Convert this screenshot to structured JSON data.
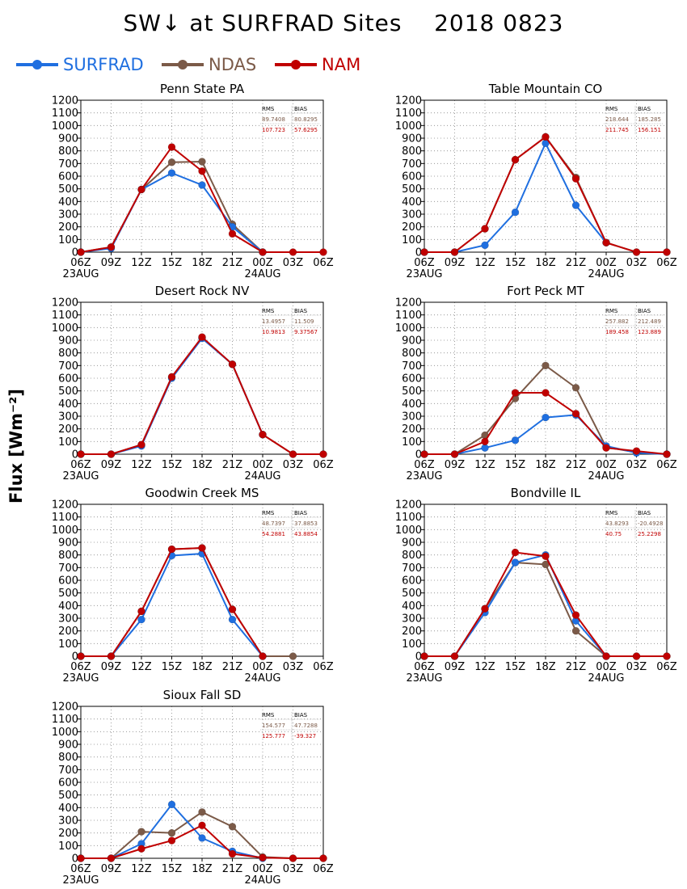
{
  "title": "SW↓ at SURFRAD Sites    2018 0823",
  "y_axis_label": "Flux [Wm⁻²]",
  "legend": [
    {
      "name": "SURFRAD",
      "color": "#1f6fe0"
    },
    {
      "name": "NDAS",
      "color": "#7b5a48"
    },
    {
      "name": "NAM",
      "color": "#c00000"
    }
  ],
  "stats_headers": [
    "RMS",
    "BIAS"
  ],
  "chart_data": [
    {
      "type": "line",
      "title": "Penn State PA",
      "categories": [
        "06Z",
        "09Z",
        "12Z",
        "15Z",
        "18Z",
        "21Z",
        "00Z",
        "03Z",
        "06Z"
      ],
      "date_labels": [
        "23AUG",
        "24AUG"
      ],
      "ylim": [
        0,
        1200
      ],
      "yticks": [
        0,
        100,
        200,
        300,
        400,
        500,
        600,
        700,
        800,
        900,
        1000,
        1100,
        1200
      ],
      "grid": true,
      "stats": {
        "ndas": [
          "89.7408",
          "80.8295"
        ],
        "nam": [
          "107.723",
          "57.6295"
        ]
      },
      "series": [
        {
          "name": "SURFRAD",
          "values": [
            0,
            30,
            495,
            625,
            530,
            200,
            0,
            null,
            null
          ]
        },
        {
          "name": "NDAS",
          "values": [
            0,
            40,
            495,
            710,
            715,
            220,
            0,
            null,
            null
          ]
        },
        {
          "name": "NAM",
          "values": [
            0,
            40,
            495,
            830,
            640,
            145,
            0,
            0,
            0
          ]
        }
      ]
    },
    {
      "type": "line",
      "title": "Table Mountain CO",
      "categories": [
        "06Z",
        "09Z",
        "12Z",
        "15Z",
        "18Z",
        "21Z",
        "00Z",
        "03Z",
        "06Z"
      ],
      "date_labels": [
        "23AUG",
        "24AUG"
      ],
      "ylim": [
        0,
        1200
      ],
      "yticks": [
        0,
        100,
        200,
        300,
        400,
        500,
        600,
        700,
        800,
        900,
        1000,
        1100,
        1200
      ],
      "grid": true,
      "stats": {
        "ndas": [
          "218.644",
          "185.285"
        ],
        "nam": [
          "211.745",
          "156.151"
        ]
      },
      "series": [
        {
          "name": "SURFRAD",
          "values": [
            0,
            0,
            55,
            315,
            860,
            370,
            75,
            null,
            null
          ]
        },
        {
          "name": "NDAS",
          "values": [
            0,
            0,
            185,
            730,
            910,
            590,
            75,
            0,
            0
          ]
        },
        {
          "name": "NAM",
          "values": [
            0,
            0,
            185,
            730,
            910,
            580,
            75,
            0,
            0
          ]
        }
      ]
    },
    {
      "type": "line",
      "title": "Desert Rock NV",
      "categories": [
        "06Z",
        "09Z",
        "12Z",
        "15Z",
        "18Z",
        "21Z",
        "00Z",
        "03Z",
        "06Z"
      ],
      "date_labels": [
        "23AUG",
        "24AUG"
      ],
      "ylim": [
        0,
        1200
      ],
      "yticks": [
        0,
        100,
        200,
        300,
        400,
        500,
        600,
        700,
        800,
        900,
        1000,
        1100,
        1200
      ],
      "grid": true,
      "stats": {
        "ndas": [
          "13.4957",
          "11.509"
        ],
        "nam": [
          "10.9813",
          "9.37567"
        ]
      },
      "series": [
        {
          "name": "SURFRAD",
          "values": [
            0,
            0,
            65,
            600,
            915,
            710,
            155,
            null,
            null
          ]
        },
        {
          "name": "NDAS",
          "values": [
            0,
            0,
            75,
            610,
            920,
            710,
            155,
            0,
            0
          ]
        },
        {
          "name": "NAM",
          "values": [
            0,
            0,
            75,
            610,
            925,
            710,
            155,
            0,
            0
          ]
        }
      ]
    },
    {
      "type": "line",
      "title": "Fort Peck MT",
      "categories": [
        "06Z",
        "09Z",
        "12Z",
        "15Z",
        "18Z",
        "21Z",
        "00Z",
        "03Z",
        "06Z"
      ],
      "date_labels": [
        "23AUG",
        "24AUG"
      ],
      "ylim": [
        0,
        1200
      ],
      "yticks": [
        0,
        100,
        200,
        300,
        400,
        500,
        600,
        700,
        800,
        900,
        1000,
        1100,
        1200
      ],
      "grid": true,
      "stats": {
        "ndas": [
          "257.882",
          "212.489"
        ],
        "nam": [
          "189.458",
          "123.889"
        ]
      },
      "series": [
        {
          "name": "SURFRAD",
          "values": [
            0,
            0,
            50,
            110,
            290,
            310,
            65,
            10,
            0
          ]
        },
        {
          "name": "NDAS",
          "values": [
            0,
            0,
            150,
            440,
            700,
            525,
            55,
            15,
            0
          ]
        },
        {
          "name": "NAM",
          "values": [
            0,
            0,
            100,
            485,
            485,
            320,
            50,
            25,
            0
          ]
        }
      ]
    },
    {
      "type": "line",
      "title": "Goodwin Creek MS",
      "categories": [
        "06Z",
        "09Z",
        "12Z",
        "15Z",
        "18Z",
        "21Z",
        "00Z",
        "03Z",
        "06Z"
      ],
      "date_labels": [
        "23AUG",
        "24AUG"
      ],
      "ylim": [
        0,
        1200
      ],
      "yticks": [
        0,
        100,
        200,
        300,
        400,
        500,
        600,
        700,
        800,
        900,
        1000,
        1100,
        1200
      ],
      "grid": true,
      "stats": {
        "ndas": [
          "48.7397",
          "37.8853"
        ],
        "nam": [
          "54.2881",
          "43.8854"
        ]
      },
      "series": [
        {
          "name": "SURFRAD",
          "values": [
            0,
            0,
            290,
            795,
            810,
            290,
            0,
            null,
            null
          ]
        },
        {
          "name": "NDAS",
          "values": [
            0,
            0,
            355,
            845,
            855,
            370,
            0,
            0,
            null
          ]
        },
        {
          "name": "NAM",
          "values": [
            0,
            0,
            355,
            845,
            855,
            370,
            0,
            null,
            null
          ]
        }
      ]
    },
    {
      "type": "line",
      "title": "Bondville IL",
      "categories": [
        "06Z",
        "09Z",
        "12Z",
        "15Z",
        "18Z",
        "21Z",
        "00Z",
        "03Z",
        "06Z"
      ],
      "date_labels": [
        "23AUG",
        "24AUG"
      ],
      "ylim": [
        0,
        1200
      ],
      "yticks": [
        0,
        100,
        200,
        300,
        400,
        500,
        600,
        700,
        800,
        900,
        1000,
        1100,
        1200
      ],
      "grid": true,
      "stats": {
        "ndas": [
          "43.8293",
          "-20.4928"
        ],
        "nam": [
          "40.75",
          "25.2298"
        ]
      },
      "series": [
        {
          "name": "SURFRAD",
          "values": [
            0,
            0,
            345,
            740,
            800,
            280,
            0,
            null,
            null
          ]
        },
        {
          "name": "NDAS",
          "values": [
            0,
            0,
            375,
            740,
            725,
            200,
            0,
            0,
            0
          ]
        },
        {
          "name": "NAM",
          "values": [
            0,
            0,
            375,
            820,
            790,
            325,
            0,
            0,
            0
          ]
        }
      ]
    },
    {
      "type": "line",
      "title": "Sioux Fall SD",
      "categories": [
        "06Z",
        "09Z",
        "12Z",
        "15Z",
        "18Z",
        "21Z",
        "00Z",
        "03Z",
        "06Z"
      ],
      "date_labels": [
        "23AUG",
        "24AUG"
      ],
      "ylim": [
        0,
        1200
      ],
      "yticks": [
        0,
        100,
        200,
        300,
        400,
        500,
        600,
        700,
        800,
        900,
        1000,
        1100,
        1200
      ],
      "grid": true,
      "stats": {
        "ndas": [
          "154.577",
          "47.7288"
        ],
        "nam": [
          "125.777",
          "-39.327"
        ]
      },
      "series": [
        {
          "name": "SURFRAD",
          "values": [
            0,
            0,
            115,
            425,
            160,
            55,
            0,
            null,
            null
          ]
        },
        {
          "name": "NDAS",
          "values": [
            0,
            0,
            210,
            200,
            365,
            250,
            10,
            0,
            0
          ]
        },
        {
          "name": "NAM",
          "values": [
            0,
            0,
            75,
            140,
            260,
            35,
            5,
            0,
            0
          ]
        }
      ]
    }
  ]
}
